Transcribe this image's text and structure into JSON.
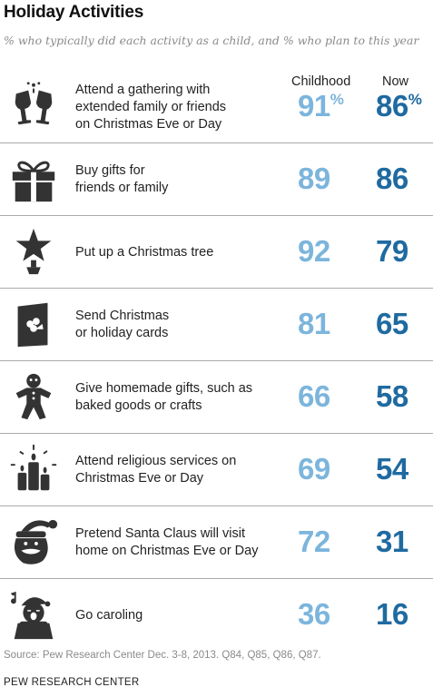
{
  "title": "Holiday Activities",
  "subtitle": "% who typically did each activity as a child, and % who plan to this year",
  "chart_data": {
    "type": "table",
    "columns": [
      "Childhood",
      "Now"
    ],
    "percent_sign": "%",
    "rows": [
      {
        "label": "Attend a gathering with extended family or friends on Christmas Eve or Day",
        "label_lines": [
          "Attend a gathering with",
          "extended family or friends",
          "on Christmas Eve or Day"
        ],
        "childhood": 91,
        "now": 86,
        "icon": "champagne-glasses-icon"
      },
      {
        "label": "Buy gifts for friends or family",
        "label_lines": [
          "Buy gifts for",
          "friends or family"
        ],
        "childhood": 89,
        "now": 86,
        "icon": "gift-icon"
      },
      {
        "label": "Put up a Christmas tree",
        "label_lines": [
          "Put up a Christmas tree"
        ],
        "childhood": 92,
        "now": 79,
        "icon": "christmas-tree-icon"
      },
      {
        "label": "Send Christmas or holiday cards",
        "label_lines": [
          "Send Christmas",
          "or holiday cards"
        ],
        "childhood": 81,
        "now": 65,
        "icon": "holiday-card-icon"
      },
      {
        "label": "Give homemade gifts, such as baked goods or crafts",
        "label_lines": [
          "Give homemade gifts, such as",
          "baked goods or crafts"
        ],
        "childhood": 66,
        "now": 58,
        "icon": "gingerbread-man-icon"
      },
      {
        "label": "Attend religious services on Christmas Eve or Day",
        "label_lines": [
          "Attend religious services on",
          "Christmas Eve or Day"
        ],
        "childhood": 69,
        "now": 54,
        "icon": "candles-icon"
      },
      {
        "label": "Pretend Santa Claus will visit home on Christmas Eve or Day",
        "label_lines": [
          "Pretend Santa Claus will visit",
          "home on Christmas Eve or Day"
        ],
        "childhood": 72,
        "now": 31,
        "icon": "santa-claus-icon"
      },
      {
        "label": "Go caroling",
        "label_lines": [
          "Go caroling"
        ],
        "childhood": 36,
        "now": 16,
        "icon": "caroler-icon"
      }
    ]
  },
  "source": "Source: Pew Research Center Dec. 3-8, 2013. Q84, Q85, Q86, Q87.",
  "org": "PEW RESEARCH CENTER",
  "colors": {
    "childhood": "#7cb5dc",
    "now": "#1f6aa0",
    "icon": "#333333"
  }
}
